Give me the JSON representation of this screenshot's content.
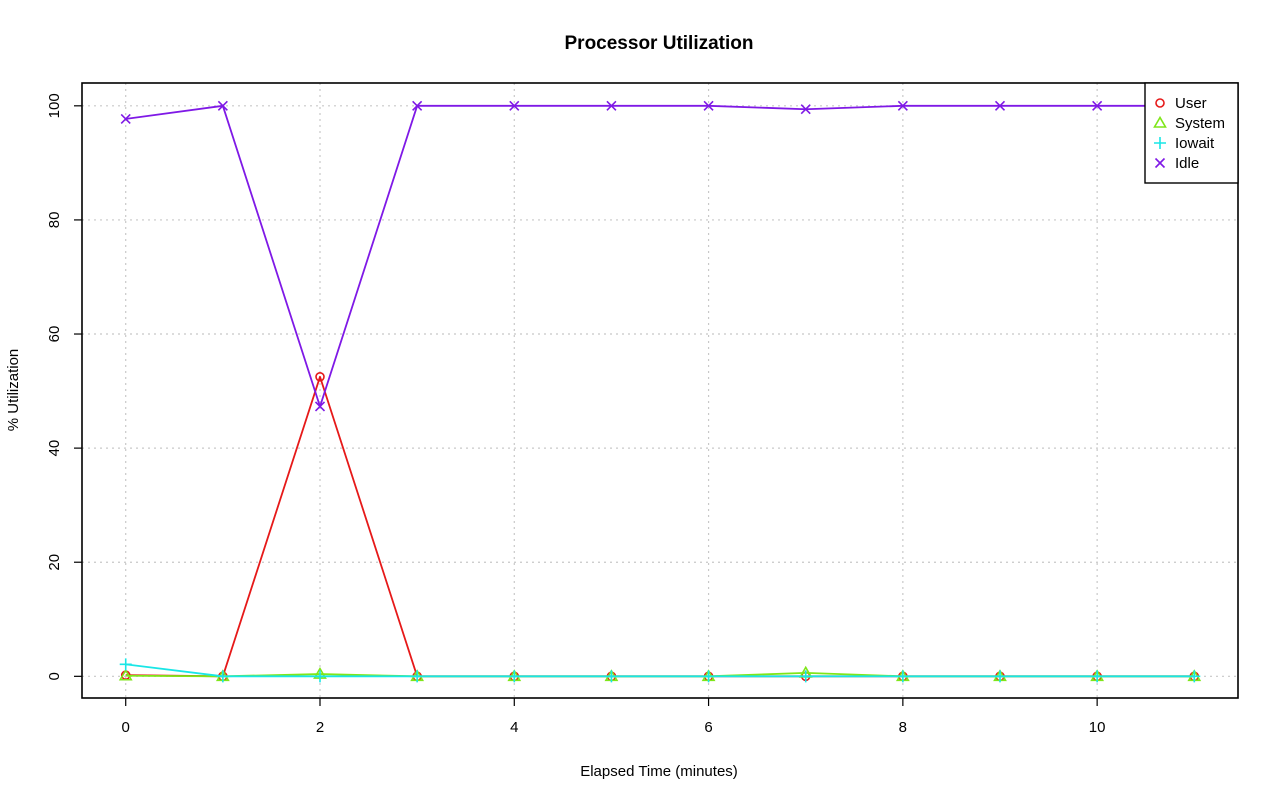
{
  "chart_data": {
    "type": "line",
    "title": "Processor Utilization",
    "xlabel": "Elapsed Time (minutes)",
    "ylabel": "% Utilization",
    "xlim": [
      -0.45,
      11.45
    ],
    "ylim": [
      -3.8,
      104
    ],
    "x_ticks": [
      0,
      2,
      4,
      6,
      8,
      10
    ],
    "y_ticks": [
      0,
      20,
      40,
      60,
      80,
      100
    ],
    "grid": true,
    "legend_position": "top-right",
    "x": [
      0,
      1,
      2,
      3,
      4,
      5,
      6,
      7,
      8,
      9,
      10,
      11
    ],
    "series": [
      {
        "name": "User",
        "color": "#e61919",
        "marker": "circle",
        "values": [
          0.2,
          0.0,
          52.5,
          0.0,
          0.0,
          0.0,
          0.0,
          0.0,
          0.0,
          0.0,
          0.0,
          0.0
        ]
      },
      {
        "name": "System",
        "color": "#7fe619",
        "marker": "triangle",
        "values": [
          0.1,
          0.0,
          0.4,
          0.0,
          0.0,
          0.0,
          0.0,
          0.6,
          0.0,
          0.0,
          0.0,
          0.0
        ]
      },
      {
        "name": "Iowait",
        "color": "#19e6e6",
        "marker": "plus",
        "values": [
          2.1,
          0.0,
          0.0,
          0.0,
          0.0,
          0.0,
          0.0,
          0.0,
          0.0,
          0.0,
          0.0,
          0.0
        ]
      },
      {
        "name": "Idle",
        "color": "#7f19e6",
        "marker": "cross",
        "values": [
          97.7,
          100.0,
          47.3,
          100.0,
          100.0,
          100.0,
          100.0,
          99.4,
          100.0,
          100.0,
          100.0,
          100.0
        ]
      }
    ]
  }
}
